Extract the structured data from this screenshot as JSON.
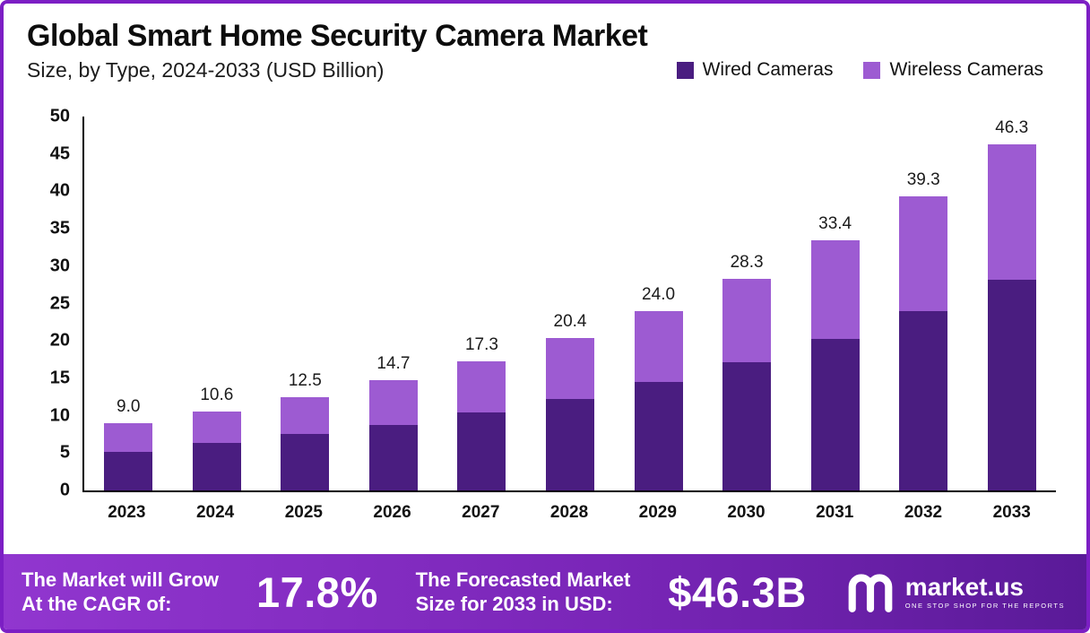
{
  "header": {
    "title": "Global Smart Home Security Camera Market",
    "subtitle": "Size, by Type, 2024-2033 (USD Billion)"
  },
  "legend": [
    {
      "label": "Wired Cameras",
      "color": "#4a1d80"
    },
    {
      "label": "Wireless Cameras",
      "color": "#9d5bd2"
    }
  ],
  "chart_data": {
    "type": "bar",
    "stacked": true,
    "title": "Global Smart Home Security Camera Market Size, by Type, 2024-2033 (USD Billion)",
    "categories": [
      "2023",
      "2024",
      "2025",
      "2026",
      "2027",
      "2028",
      "2029",
      "2030",
      "2031",
      "2032",
      "2033"
    ],
    "series": [
      {
        "name": "Wired Cameras",
        "color": "#4a1d80",
        "values": [
          5.2,
          6.3,
          7.5,
          8.8,
          10.4,
          12.2,
          14.5,
          17.2,
          20.3,
          24.0,
          28.2
        ]
      },
      {
        "name": "Wireless Cameras",
        "color": "#9d5bd2",
        "values": [
          3.8,
          4.3,
          5.0,
          5.9,
          6.9,
          8.2,
          9.5,
          11.1,
          13.1,
          15.3,
          18.1
        ]
      }
    ],
    "total_labels": [
      "9.0",
      "10.6",
      "12.5",
      "14.7",
      "17.3",
      "20.4",
      "24.0",
      "28.3",
      "33.4",
      "39.3",
      "46.3"
    ],
    "ylim": [
      0,
      50
    ],
    "yticks": [
      0,
      5,
      10,
      15,
      20,
      25,
      30,
      35,
      40,
      45,
      50
    ],
    "grid": false,
    "legend_position": "top-right"
  },
  "footer": {
    "cagr_line1": "The Market will Grow",
    "cagr_line2": "At the CAGR of:",
    "cagr_value": "17.8%",
    "forecast_line1": "The Forecasted Market",
    "forecast_line2": "Size for 2033 in USD:",
    "forecast_value": "$46.3B",
    "brand_name": "market.us",
    "brand_tagline": "ONE STOP SHOP FOR THE REPORTS"
  },
  "colors": {
    "wired": "#4a1d80",
    "wireless": "#9d5bd2",
    "frame_border": "#7c1fc4",
    "footer_gradient_start": "#9136cf",
    "footer_gradient_end": "#5a1a98"
  }
}
